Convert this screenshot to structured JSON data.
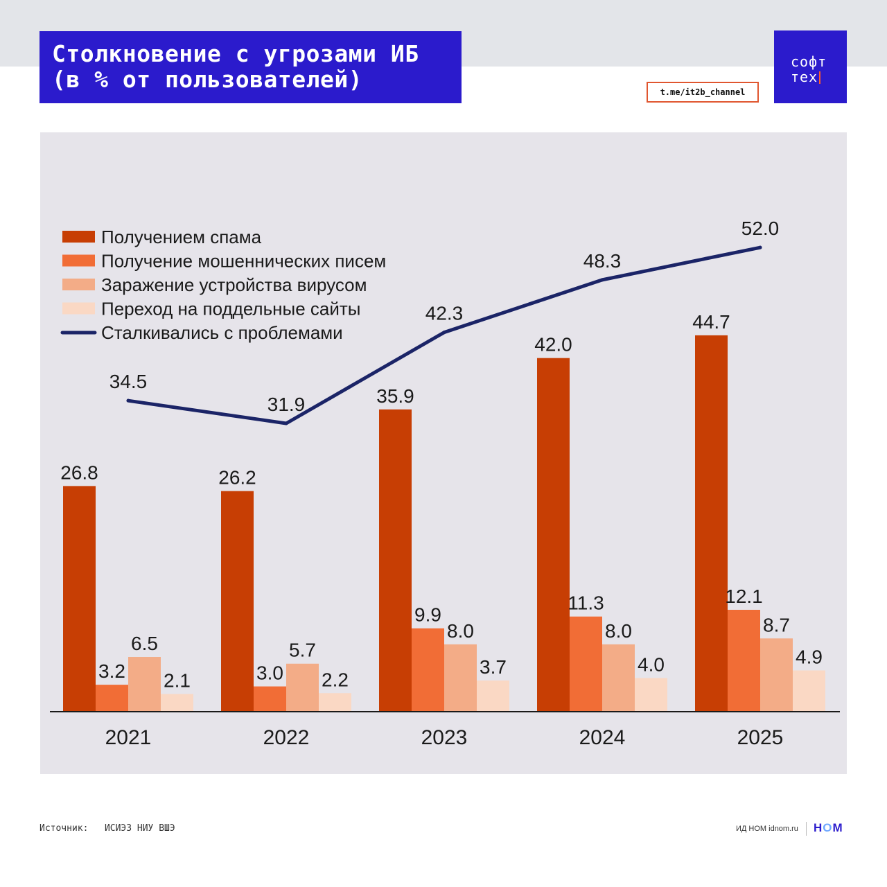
{
  "header": {
    "title_line1": "Столкновение с угрозами ИБ",
    "title_line2": "(в % от пользователей)",
    "logo_line1": "софт",
    "logo_line2": "тех",
    "channel": "t.me/it2b_channel"
  },
  "footer": {
    "source_label": "Источник:",
    "source_value": "ИСИЭЗ НИУ ВШЭ",
    "publisher": "ИД НОМ idnom.ru",
    "brand_h": "H",
    "brand_o": "O",
    "brand_m": "M"
  },
  "colors": {
    "accent": "#2b1bcc",
    "spam": "#c73e04",
    "phishing": "#f16d36",
    "virus": "#f3ac87",
    "fake_sites": "#fad8c4",
    "line": "#1b2467"
  },
  "chart_data": {
    "type": "bar",
    "title": "Столкновение с угрозами ИБ (в % от пользователей)",
    "categories": [
      "2021",
      "2022",
      "2023",
      "2024",
      "2025"
    ],
    "series": [
      {
        "name": "Получением спама",
        "type": "bar",
        "color": "#c73e04",
        "values": [
          26.8,
          26.2,
          35.9,
          42.0,
          44.7
        ]
      },
      {
        "name": "Получение мошеннических писем",
        "type": "bar",
        "color": "#f16d36",
        "values": [
          3.2,
          3.0,
          9.9,
          11.3,
          12.1
        ]
      },
      {
        "name": "Заражение устройства вирусом",
        "type": "bar",
        "color": "#f3ac87",
        "values": [
          6.5,
          5.7,
          8.0,
          8.0,
          8.7
        ]
      },
      {
        "name": "Переход на поддельные сайты",
        "type": "bar",
        "color": "#fad8c4",
        "values": [
          2.1,
          2.2,
          3.7,
          4.0,
          4.9
        ]
      },
      {
        "name": "Сталкивались с проблемами",
        "type": "line",
        "color": "#1b2467",
        "values": [
          34.5,
          31.9,
          42.3,
          48.3,
          52.0
        ]
      }
    ],
    "bar_labels": [
      [
        "26.8",
        "26.2",
        "35.9",
        "42.0",
        "44.7"
      ],
      [
        "3.2",
        "3.0",
        "9.9",
        "11.3",
        "12.1"
      ],
      [
        "6.5",
        "5.7",
        "8.0",
        "8.0",
        "8.7"
      ],
      [
        "2.1",
        "2.2",
        "3.7",
        "4.0",
        "4.9"
      ]
    ],
    "line_labels": [
      "34.5",
      "31.9",
      "42.3",
      "48.3",
      "52.0"
    ],
    "legend_position": "top-left",
    "grid": false
  }
}
